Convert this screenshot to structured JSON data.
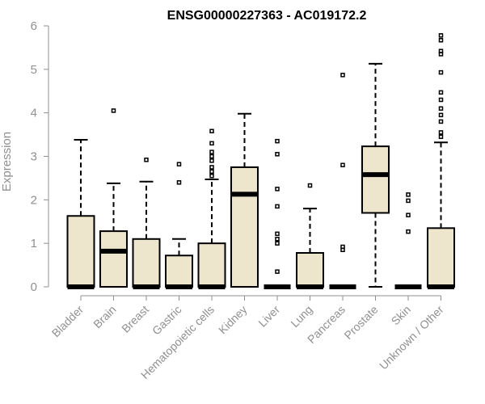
{
  "chart_data": {
    "type": "boxplot",
    "title": "ENSG00000227363 - AC019172.2",
    "ylabel": "Expression",
    "xlabel": "",
    "ylim": [
      0,
      6
    ],
    "yticks": [
      0,
      1,
      2,
      3,
      4,
      5,
      6
    ],
    "box_fill": "#ede6cc",
    "categories": [
      "Bladder",
      "Brain",
      "Breast",
      "Gastric",
      "Hematopoietic cells",
      "Kidney",
      "Liver",
      "Lung",
      "Pancreas",
      "Prostate",
      "Skin",
      "Unknown / Other"
    ],
    "boxes": [
      {
        "q1": 0,
        "median": 0,
        "q3": 1.63,
        "whisker_low": 0,
        "whisker_high": 3.38,
        "outliers": []
      },
      {
        "q1": 0,
        "median": 0.82,
        "q3": 1.28,
        "whisker_low": 0,
        "whisker_high": 2.38,
        "outliers": [
          4.05
        ]
      },
      {
        "q1": 0,
        "median": 0,
        "q3": 1.1,
        "whisker_low": 0,
        "whisker_high": 2.42,
        "outliers": [
          2.92
        ]
      },
      {
        "q1": 0,
        "median": 0,
        "q3": 0.72,
        "whisker_low": 0,
        "whisker_high": 1.1,
        "outliers": [
          2.4,
          2.82
        ]
      },
      {
        "q1": 0,
        "median": 0,
        "q3": 1.0,
        "whisker_low": 0,
        "whisker_high": 2.47,
        "outliers": [
          2.55,
          2.65,
          2.75,
          2.9,
          3.0,
          3.1,
          3.3,
          3.58
        ]
      },
      {
        "q1": 0,
        "median": 2.13,
        "q3": 2.75,
        "whisker_low": 0,
        "whisker_high": 3.98,
        "outliers": []
      },
      {
        "q1": 0,
        "median": 0,
        "q3": 0,
        "whisker_low": 0,
        "whisker_high": 0,
        "outliers": [
          0.35,
          1.0,
          1.1,
          1.22,
          1.85,
          2.25,
          3.05,
          3.35
        ]
      },
      {
        "q1": 0,
        "median": 0,
        "q3": 0.78,
        "whisker_low": 0,
        "whisker_high": 1.8,
        "outliers": [
          2.33
        ]
      },
      {
        "q1": 0,
        "median": 0,
        "q3": 0,
        "whisker_low": 0,
        "whisker_high": 0,
        "outliers": [
          0.85,
          0.92,
          2.8,
          4.87
        ]
      },
      {
        "q1": 1.7,
        "median": 2.58,
        "q3": 3.23,
        "whisker_low": 0,
        "whisker_high": 5.13,
        "outliers": []
      },
      {
        "q1": 0,
        "median": 0,
        "q3": 0,
        "whisker_low": 0,
        "whisker_high": 0,
        "outliers": [
          1.27,
          1.65,
          1.98,
          2.12
        ]
      },
      {
        "q1": 0,
        "median": 0,
        "q3": 1.35,
        "whisker_low": 0,
        "whisker_high": 3.32,
        "outliers": [
          3.45,
          3.55,
          3.8,
          3.95,
          4.1,
          4.3,
          4.47,
          4.93,
          5.35,
          5.42,
          5.67,
          5.78
        ]
      }
    ]
  }
}
